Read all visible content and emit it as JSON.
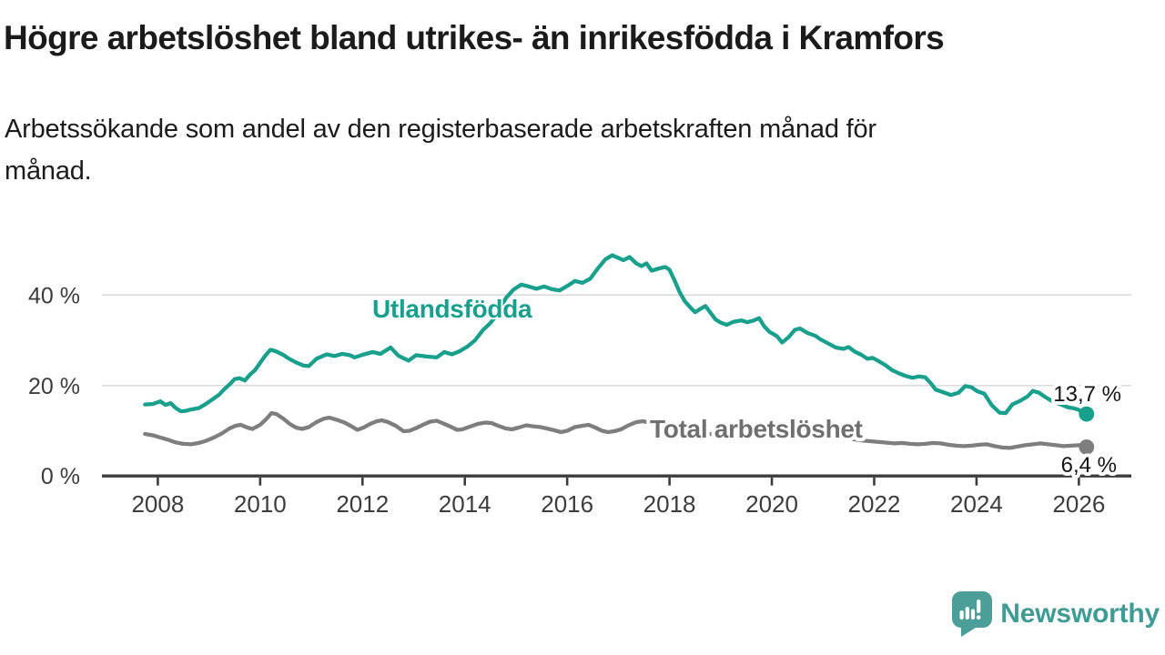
{
  "header": {
    "title": "Högre arbetslöshet bland utrikes- än inrikesfödda i Kramfors",
    "subtitle_lines": [
      "Arbetssökande som andel av den registerbaserade arbetskraften månad för",
      "månad."
    ]
  },
  "footer": {
    "brand": "Newsworthy",
    "brand_color": "#3E9C95",
    "icon_color": "#4C9F98"
  },
  "chart_data": {
    "type": "line",
    "title": "Högre arbetslöshet bland utrikes- än inrikesfödda i Kramfors",
    "subtitle": "Arbetssökande som andel av den registerbaserade arbetskraften månad för månad.",
    "xlabel": "",
    "ylabel": "",
    "xlim": [
      2007.5,
      2026.6
    ],
    "ylim": [
      0,
      50
    ],
    "grid": true,
    "grid_color": "#DADADA",
    "axis_color": "#3C3C3C",
    "x_ticks": [
      2008,
      2010,
      2012,
      2014,
      2016,
      2018,
      2020,
      2022,
      2024,
      2026
    ],
    "y_ticks": [
      {
        "value": 0,
        "label": "0 %"
      },
      {
        "value": 20,
        "label": "20 %"
      },
      {
        "value": 40,
        "label": "40 %"
      }
    ],
    "series": [
      {
        "name": "Utlandsfödda",
        "color": "#18A08C",
        "label_color": "#18A08C",
        "end_label": "13,7 %",
        "end_value": 13.7,
        "points": [
          [
            2007.75,
            15.8
          ],
          [
            2007.9,
            15.9
          ],
          [
            2008.05,
            16.5
          ],
          [
            2008.15,
            15.7
          ],
          [
            2008.25,
            16.1
          ],
          [
            2008.35,
            15.0
          ],
          [
            2008.45,
            14.3
          ],
          [
            2008.55,
            14.4
          ],
          [
            2008.65,
            14.7
          ],
          [
            2008.8,
            15.0
          ],
          [
            2008.95,
            16.0
          ],
          [
            2009.1,
            17.2
          ],
          [
            2009.2,
            18.0
          ],
          [
            2009.3,
            19.2
          ],
          [
            2009.4,
            20.2
          ],
          [
            2009.5,
            21.4
          ],
          [
            2009.6,
            21.6
          ],
          [
            2009.7,
            21.1
          ],
          [
            2009.8,
            22.4
          ],
          [
            2009.9,
            23.4
          ],
          [
            2010.0,
            25.0
          ],
          [
            2010.1,
            26.6
          ],
          [
            2010.2,
            27.9
          ],
          [
            2010.3,
            27.6
          ],
          [
            2010.45,
            26.8
          ],
          [
            2010.55,
            26.0
          ],
          [
            2010.7,
            25.1
          ],
          [
            2010.85,
            24.4
          ],
          [
            2010.95,
            24.3
          ],
          [
            2011.1,
            25.9
          ],
          [
            2011.3,
            26.9
          ],
          [
            2011.45,
            26.5
          ],
          [
            2011.6,
            27.0
          ],
          [
            2011.75,
            26.7
          ],
          [
            2011.85,
            26.2
          ],
          [
            2012.0,
            26.8
          ],
          [
            2012.2,
            27.4
          ],
          [
            2012.35,
            27.0
          ],
          [
            2012.55,
            28.4
          ],
          [
            2012.7,
            26.6
          ],
          [
            2012.9,
            25.5
          ],
          [
            2013.05,
            26.7
          ],
          [
            2013.25,
            26.4
          ],
          [
            2013.45,
            26.2
          ],
          [
            2013.6,
            27.4
          ],
          [
            2013.75,
            26.9
          ],
          [
            2013.9,
            27.6
          ],
          [
            2014.05,
            28.6
          ],
          [
            2014.2,
            30.0
          ],
          [
            2014.35,
            32.2
          ],
          [
            2014.5,
            33.8
          ],
          [
            2014.65,
            36.0
          ],
          [
            2014.8,
            39.3
          ],
          [
            2014.95,
            41.2
          ],
          [
            2015.1,
            42.3
          ],
          [
            2015.25,
            41.9
          ],
          [
            2015.4,
            41.4
          ],
          [
            2015.55,
            41.9
          ],
          [
            2015.7,
            41.3
          ],
          [
            2015.85,
            41.0
          ],
          [
            2016.0,
            42.0
          ],
          [
            2016.15,
            43.1
          ],
          [
            2016.3,
            42.7
          ],
          [
            2016.45,
            43.6
          ],
          [
            2016.6,
            45.9
          ],
          [
            2016.75,
            47.9
          ],
          [
            2016.88,
            48.8
          ],
          [
            2017.0,
            48.2
          ],
          [
            2017.1,
            47.7
          ],
          [
            2017.22,
            48.4
          ],
          [
            2017.35,
            47.0
          ],
          [
            2017.45,
            46.4
          ],
          [
            2017.55,
            47.0
          ],
          [
            2017.65,
            45.4
          ],
          [
            2017.8,
            45.9
          ],
          [
            2017.92,
            46.2
          ],
          [
            2018.0,
            45.6
          ],
          [
            2018.1,
            43.2
          ],
          [
            2018.2,
            40.6
          ],
          [
            2018.3,
            38.6
          ],
          [
            2018.42,
            37.1
          ],
          [
            2018.5,
            36.2
          ],
          [
            2018.6,
            36.9
          ],
          [
            2018.7,
            37.6
          ],
          [
            2018.8,
            36.1
          ],
          [
            2018.9,
            34.6
          ],
          [
            2019.0,
            33.9
          ],
          [
            2019.12,
            33.4
          ],
          [
            2019.25,
            34.1
          ],
          [
            2019.4,
            34.4
          ],
          [
            2019.52,
            34.0
          ],
          [
            2019.65,
            34.4
          ],
          [
            2019.75,
            34.9
          ],
          [
            2019.85,
            33.1
          ],
          [
            2019.95,
            31.9
          ],
          [
            2020.1,
            30.9
          ],
          [
            2020.2,
            29.5
          ],
          [
            2020.32,
            30.6
          ],
          [
            2020.45,
            32.3
          ],
          [
            2020.55,
            32.6
          ],
          [
            2020.7,
            31.6
          ],
          [
            2020.85,
            31.0
          ],
          [
            2020.95,
            30.2
          ],
          [
            2021.1,
            29.3
          ],
          [
            2021.25,
            28.4
          ],
          [
            2021.4,
            28.1
          ],
          [
            2021.5,
            28.5
          ],
          [
            2021.62,
            27.5
          ],
          [
            2021.75,
            26.8
          ],
          [
            2021.87,
            25.9
          ],
          [
            2021.97,
            26.1
          ],
          [
            2022.1,
            25.3
          ],
          [
            2022.22,
            24.5
          ],
          [
            2022.35,
            23.4
          ],
          [
            2022.5,
            22.6
          ],
          [
            2022.62,
            22.1
          ],
          [
            2022.75,
            21.7
          ],
          [
            2022.87,
            22.0
          ],
          [
            2023.0,
            21.8
          ],
          [
            2023.1,
            20.6
          ],
          [
            2023.2,
            19.1
          ],
          [
            2023.35,
            18.5
          ],
          [
            2023.5,
            17.9
          ],
          [
            2023.65,
            18.4
          ],
          [
            2023.78,
            19.9
          ],
          [
            2023.9,
            19.6
          ],
          [
            2024.02,
            18.7
          ],
          [
            2024.15,
            18.2
          ],
          [
            2024.3,
            15.6
          ],
          [
            2024.45,
            14.0
          ],
          [
            2024.57,
            13.9
          ],
          [
            2024.7,
            15.8
          ],
          [
            2024.85,
            16.6
          ],
          [
            2025.0,
            17.6
          ],
          [
            2025.1,
            18.8
          ],
          [
            2025.22,
            18.4
          ],
          [
            2025.35,
            17.4
          ],
          [
            2025.5,
            16.4
          ],
          [
            2025.65,
            15.8
          ],
          [
            2025.78,
            15.2
          ],
          [
            2025.88,
            15.0
          ],
          [
            2025.98,
            14.7
          ],
          [
            2026.08,
            14.1
          ],
          [
            2026.15,
            13.7
          ]
        ]
      },
      {
        "name": "Total arbetslöshet",
        "color": "#7E7E7E",
        "label_color": "#6F6F6F",
        "end_label": "6,4 %",
        "end_value": 6.4,
        "points": [
          [
            2007.75,
            9.3
          ],
          [
            2007.9,
            9.0
          ],
          [
            2008.05,
            8.5
          ],
          [
            2008.2,
            8.0
          ],
          [
            2008.35,
            7.4
          ],
          [
            2008.5,
            7.1
          ],
          [
            2008.65,
            7.0
          ],
          [
            2008.8,
            7.3
          ],
          [
            2008.95,
            7.8
          ],
          [
            2009.1,
            8.5
          ],
          [
            2009.25,
            9.4
          ],
          [
            2009.4,
            10.5
          ],
          [
            2009.52,
            11.1
          ],
          [
            2009.62,
            11.3
          ],
          [
            2009.75,
            10.7
          ],
          [
            2009.85,
            10.4
          ],
          [
            2010.0,
            11.3
          ],
          [
            2010.12,
            12.6
          ],
          [
            2010.22,
            13.9
          ],
          [
            2010.32,
            13.7
          ],
          [
            2010.45,
            12.7
          ],
          [
            2010.58,
            11.5
          ],
          [
            2010.7,
            10.7
          ],
          [
            2010.82,
            10.4
          ],
          [
            2010.95,
            10.8
          ],
          [
            2011.1,
            11.9
          ],
          [
            2011.25,
            12.7
          ],
          [
            2011.35,
            12.9
          ],
          [
            2011.5,
            12.4
          ],
          [
            2011.65,
            11.8
          ],
          [
            2011.78,
            11.0
          ],
          [
            2011.9,
            10.2
          ],
          [
            2012.02,
            10.7
          ],
          [
            2012.15,
            11.5
          ],
          [
            2012.28,
            12.1
          ],
          [
            2012.38,
            12.3
          ],
          [
            2012.5,
            11.9
          ],
          [
            2012.65,
            11.1
          ],
          [
            2012.8,
            9.9
          ],
          [
            2012.92,
            10.0
          ],
          [
            2013.05,
            10.6
          ],
          [
            2013.2,
            11.4
          ],
          [
            2013.32,
            12.0
          ],
          [
            2013.45,
            12.2
          ],
          [
            2013.58,
            11.6
          ],
          [
            2013.72,
            10.9
          ],
          [
            2013.85,
            10.2
          ],
          [
            2013.95,
            10.3
          ],
          [
            2014.1,
            10.9
          ],
          [
            2014.25,
            11.5
          ],
          [
            2014.4,
            11.8
          ],
          [
            2014.52,
            11.7
          ],
          [
            2014.65,
            11.1
          ],
          [
            2014.8,
            10.5
          ],
          [
            2014.92,
            10.3
          ],
          [
            2015.05,
            10.7
          ],
          [
            2015.2,
            11.2
          ],
          [
            2015.32,
            11.0
          ],
          [
            2015.48,
            10.8
          ],
          [
            2015.6,
            10.5
          ],
          [
            2015.75,
            10.1
          ],
          [
            2015.88,
            9.7
          ],
          [
            2016.0,
            10.0
          ],
          [
            2016.15,
            10.8
          ],
          [
            2016.3,
            11.1
          ],
          [
            2016.42,
            11.3
          ],
          [
            2016.55,
            10.7
          ],
          [
            2016.68,
            10.0
          ],
          [
            2016.8,
            9.7
          ],
          [
            2016.92,
            9.9
          ],
          [
            2017.05,
            10.3
          ],
          [
            2017.2,
            11.2
          ],
          [
            2017.35,
            11.9
          ],
          [
            2017.48,
            12.1
          ],
          [
            2017.6,
            11.8
          ],
          [
            2017.75,
            11.2
          ],
          [
            2017.88,
            10.7
          ],
          [
            2018.0,
            10.4
          ],
          [
            2018.2,
            10.1
          ],
          [
            2018.4,
            9.8
          ],
          [
            2018.6,
            9.6
          ],
          [
            2018.8,
            9.3
          ],
          [
            2019.0,
            9.2
          ],
          [
            2019.2,
            9.5
          ],
          [
            2019.4,
            9.3
          ],
          [
            2019.6,
            9.0
          ],
          [
            2019.8,
            8.7
          ],
          [
            2020.0,
            8.9
          ],
          [
            2020.2,
            9.4
          ],
          [
            2020.4,
            9.9
          ],
          [
            2020.6,
            9.7
          ],
          [
            2020.8,
            9.4
          ],
          [
            2021.0,
            9.1
          ],
          [
            2021.2,
            8.8
          ],
          [
            2021.4,
            8.5
          ],
          [
            2021.6,
            8.1
          ],
          [
            2021.8,
            7.8
          ],
          [
            2022.0,
            7.6
          ],
          [
            2022.2,
            7.4
          ],
          [
            2022.4,
            7.2
          ],
          [
            2022.55,
            7.3
          ],
          [
            2022.7,
            7.1
          ],
          [
            2022.85,
            7.0
          ],
          [
            2023.0,
            7.1
          ],
          [
            2023.15,
            7.3
          ],
          [
            2023.3,
            7.2
          ],
          [
            2023.45,
            6.9
          ],
          [
            2023.6,
            6.7
          ],
          [
            2023.75,
            6.6
          ],
          [
            2023.9,
            6.7
          ],
          [
            2024.05,
            6.9
          ],
          [
            2024.2,
            7.0
          ],
          [
            2024.35,
            6.6
          ],
          [
            2024.5,
            6.3
          ],
          [
            2024.65,
            6.2
          ],
          [
            2024.8,
            6.5
          ],
          [
            2024.95,
            6.8
          ],
          [
            2025.1,
            7.0
          ],
          [
            2025.25,
            7.2
          ],
          [
            2025.4,
            7.0
          ],
          [
            2025.55,
            6.8
          ],
          [
            2025.7,
            6.6
          ],
          [
            2025.85,
            6.7
          ],
          [
            2026.0,
            6.8
          ],
          [
            2026.15,
            6.4
          ]
        ]
      }
    ]
  }
}
